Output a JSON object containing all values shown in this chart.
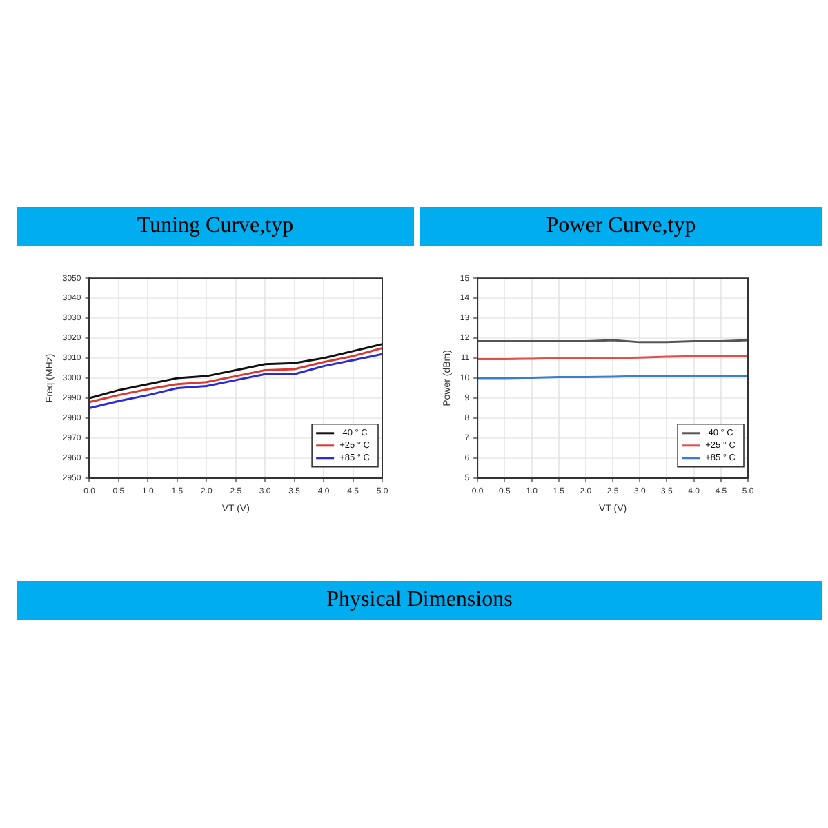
{
  "chart_data": [
    {
      "type": "line",
      "title": "Tuning Curve,typ",
      "xlabel": "VT (V)",
      "ylabel": "Freq (MHz)",
      "x": [
        0,
        0.5,
        1,
        1.5,
        2,
        2.5,
        3,
        3.5,
        4,
        4.5,
        5
      ],
      "series": [
        {
          "name": "-40 ° C",
          "color": "#111111",
          "values": [
            2990,
            2994,
            2997,
            3000,
            3001,
            3004,
            3007,
            3007.5,
            3010,
            3013.5,
            3017
          ]
        },
        {
          "name": "+25 ° C",
          "color": "#d83a30",
          "values": [
            2988,
            2991.5,
            2994.5,
            2997,
            2998,
            3001,
            3004,
            3004.5,
            3008,
            3011,
            3015
          ]
        },
        {
          "name": "+85 ° C",
          "color": "#2a2ad8",
          "values": [
            2985,
            2988.5,
            2991.5,
            2995,
            2996,
            2999,
            3002,
            3002,
            3006,
            3009,
            3012
          ]
        }
      ],
      "xlim": [
        0,
        5
      ],
      "xticks": [
        {
          "value": 0,
          "label": "0.0"
        },
        0.5,
        {
          "value": 1,
          "label": "1.0"
        },
        1.5,
        {
          "value": 2,
          "label": "2.0"
        },
        2.5,
        {
          "value": 3,
          "label": "3.0"
        },
        3.5,
        {
          "value": 4,
          "label": "4.0"
        },
        4.5,
        {
          "value": 5,
          "label": "5.0"
        }
      ],
      "ylim": [
        2950,
        3050
      ],
      "yticks": [
        2950,
        2960,
        2970,
        2980,
        2990,
        3000,
        3010,
        3020,
        3030,
        3040,
        3050
      ],
      "grid": true,
      "legend": "bottom right",
      "marker": "none",
      "line_style": "solid"
    },
    {
      "type": "line",
      "title": "Power Curve,typ",
      "xlabel": "VT (V)",
      "ylabel": "Power (dBm)",
      "x": [
        0,
        0.5,
        1,
        1.5,
        2,
        2.5,
        3,
        3.5,
        4,
        4.5,
        5
      ],
      "series": [
        {
          "name": "-40 ° C",
          "color": "#555555",
          "values": [
            11.85,
            11.85,
            11.85,
            11.85,
            11.85,
            11.9,
            11.8,
            11.8,
            11.85,
            11.85,
            11.9
          ]
        },
        {
          "name": "+25 ° C",
          "color": "#e0504a",
          "values": [
            10.95,
            10.95,
            10.97,
            11.0,
            11.0,
            11.0,
            11.03,
            11.07,
            11.1,
            11.1,
            11.1
          ]
        },
        {
          "name": "+85 ° C",
          "color": "#3a7fc8",
          "values": [
            10.0,
            10.0,
            10.02,
            10.05,
            10.05,
            10.07,
            10.1,
            10.1,
            10.1,
            10.12,
            10.1
          ]
        }
      ],
      "xlim": [
        0,
        5
      ],
      "xticks": [
        {
          "value": 0,
          "label": "0.0"
        },
        0.5,
        {
          "value": 1,
          "label": "1.0"
        },
        1.5,
        {
          "value": 2,
          "label": "2.0"
        },
        2.5,
        {
          "value": 3,
          "label": "3.0"
        },
        3.5,
        {
          "value": 4,
          "label": "4.0"
        },
        4.5,
        {
          "value": 5,
          "label": "5.0"
        }
      ],
      "ylim": [
        5,
        15
      ],
      "yticks": [
        5,
        6,
        7,
        8,
        9,
        10,
        11,
        12,
        13,
        14,
        15
      ],
      "grid": true,
      "legend": "bottom right",
      "marker": "none",
      "line_style": "solid",
      "annotations": [
        "Physical Dimensions"
      ]
    }
  ]
}
